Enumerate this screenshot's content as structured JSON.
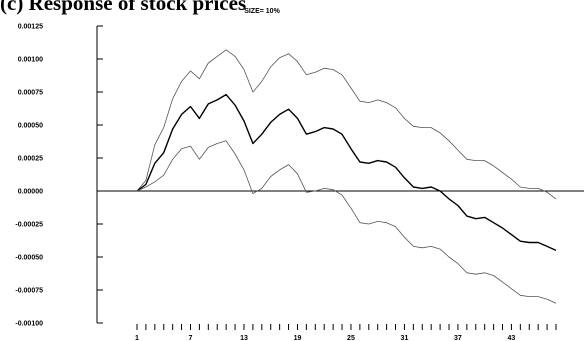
{
  "page_heading": "(c) Response of stock prices",
  "chart_data": {
    "type": "line",
    "subtitle": "SIZE= 10%",
    "title": "",
    "xlabel": "",
    "ylabel": "",
    "x_tick_labels": [
      "1",
      "7",
      "13",
      "19",
      "25",
      "31",
      "37",
      "43"
    ],
    "x_tick_values": [
      1,
      7,
      13,
      19,
      25,
      31,
      37,
      43
    ],
    "x_range": [
      1,
      48
    ],
    "y_tick_labels": [
      "0.00125",
      "0.00100",
      "0.00075",
      "0.00050",
      "0.00025",
      "0.00000",
      "-0.00025",
      "-0.00050",
      "-0.00075",
      "-0.00100"
    ],
    "y_tick_values": [
      0.00125,
      0.001,
      0.00075,
      0.0005,
      0.00025,
      0,
      -0.00025,
      -0.0005,
      -0.00075,
      -0.001
    ],
    "ylim": [
      -0.001,
      0.00125
    ],
    "zero_line": true,
    "grid": false,
    "x": [
      1,
      2,
      3,
      4,
      5,
      6,
      7,
      8,
      9,
      10,
      11,
      12,
      13,
      14,
      15,
      16,
      17,
      18,
      19,
      20,
      21,
      22,
      23,
      24,
      25,
      26,
      27,
      28,
      29,
      30,
      31,
      32,
      33,
      34,
      35,
      36,
      37,
      38,
      39,
      40,
      41,
      42,
      43,
      44,
      45,
      46,
      47,
      48
    ],
    "series": [
      {
        "role": "upper-band",
        "color": "#555555",
        "width": 0.8,
        "values": [
          0.0,
          8e-05,
          0.00035,
          0.00048,
          0.0007,
          0.00083,
          0.00091,
          0.00085,
          0.00097,
          0.00102,
          0.00107,
          0.00102,
          0.00092,
          0.00075,
          0.00083,
          0.00094,
          0.00101,
          0.00104,
          0.00098,
          0.00088,
          0.0009,
          0.00093,
          0.00092,
          0.00088,
          0.00078,
          0.00068,
          0.00067,
          0.00069,
          0.00067,
          0.00063,
          0.00055,
          0.00049,
          0.00048,
          0.00048,
          0.00044,
          0.00038,
          0.00031,
          0.00024,
          0.00023,
          0.00023,
          0.00019,
          0.00014,
          9e-05,
          3e-05,
          2e-05,
          2e-05,
          -1e-05,
          -6e-05
        ]
      },
      {
        "role": "point-estimate",
        "color": "#000000",
        "width": 1.4,
        "values": [
          0.0,
          5e-05,
          0.00021,
          0.00029,
          0.00047,
          0.00058,
          0.00064,
          0.00055,
          0.00066,
          0.00069,
          0.00073,
          0.00065,
          0.00053,
          0.00036,
          0.00043,
          0.00052,
          0.00058,
          0.00062,
          0.00055,
          0.00043,
          0.00045,
          0.00048,
          0.00047,
          0.00043,
          0.00032,
          0.00022,
          0.00021,
          0.00023,
          0.00022,
          0.00018,
          0.0001,
          3e-05,
          2e-05,
          3e-05,
          0.0,
          -6e-05,
          -0.00011,
          -0.00019,
          -0.00021,
          -0.0002,
          -0.00024,
          -0.00028,
          -0.00033,
          -0.00038,
          -0.00039,
          -0.00039,
          -0.00042,
          -0.00045
        ]
      },
      {
        "role": "lower-band",
        "color": "#555555",
        "width": 0.8,
        "values": [
          0.0,
          3e-05,
          7e-05,
          0.00012,
          0.00024,
          0.00032,
          0.00034,
          0.00024,
          0.00033,
          0.00036,
          0.00038,
          0.00028,
          0.00016,
          -2e-05,
          2e-05,
          0.00011,
          0.00016,
          0.0002,
          0.00013,
          -1e-05,
          0.0,
          2e-05,
          1e-05,
          -3e-05,
          -0.00013,
          -0.00024,
          -0.00025,
          -0.00023,
          -0.00024,
          -0.00027,
          -0.00035,
          -0.00042,
          -0.00043,
          -0.00042,
          -0.00044,
          -0.0005,
          -0.00055,
          -0.00062,
          -0.00063,
          -0.00062,
          -0.00064,
          -0.00069,
          -0.00074,
          -0.00079,
          -0.0008,
          -0.0008,
          -0.00082,
          -0.00085
        ]
      }
    ]
  }
}
